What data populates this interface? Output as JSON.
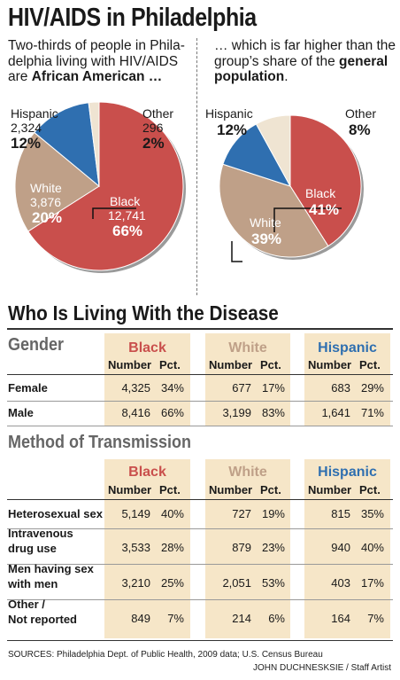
{
  "title": "HIV/AIDS in Philadelphia",
  "left_intro_1": "Two-thirds of people in Phila-delphia living with HIV/AIDS are ",
  "left_intro_bold": "African American …",
  "right_intro_1": "… which is far higher than the group’s share of the ",
  "right_intro_bold": "general population",
  "right_intro_end": ".",
  "colors": {
    "black": "#c94f4c",
    "white": "#bfa088",
    "hispanic": "#2f6fb0",
    "other": "#efe4d2",
    "band": "#f6e6c8"
  },
  "chart_data": [
    {
      "type": "pie",
      "slices": [
        {
          "name": "Black",
          "count": "12,741",
          "pct": "66%",
          "value": 66
        },
        {
          "name": "White",
          "count": "3,876",
          "pct": "20%",
          "value": 20
        },
        {
          "name": "Hispanic",
          "count": "2,324",
          "pct": "12%",
          "value": 12
        },
        {
          "name": "Other",
          "count": "296",
          "pct": "2%",
          "value": 2
        }
      ]
    },
    {
      "type": "pie",
      "slices": [
        {
          "name": "Black",
          "pct": "41%",
          "value": 41
        },
        {
          "name": "White",
          "pct": "39%",
          "value": 39
        },
        {
          "name": "Hispanic",
          "pct": "12%",
          "value": 12
        },
        {
          "name": "Other",
          "pct": "8%",
          "value": 8
        }
      ]
    },
    {
      "type": "table",
      "title": "Who Is Living With the Disease",
      "groups": [
        "Black",
        "White",
        "Hispanic"
      ],
      "col_headers": [
        "Number",
        "Pct."
      ],
      "sections": [
        {
          "name": "Gender",
          "rows": [
            {
              "label": [
                "Female"
              ],
              "values": [
                [
                  "4,325",
                  "34%"
                ],
                [
                  "677",
                  "17%"
                ],
                [
                  "683",
                  "29%"
                ]
              ]
            },
            {
              "label": [
                "Male"
              ],
              "values": [
                [
                  "8,416",
                  "66%"
                ],
                [
                  "3,199",
                  "83%"
                ],
                [
                  "1,641",
                  "71%"
                ]
              ]
            }
          ]
        },
        {
          "name": "Method of Transmission",
          "rows": [
            {
              "label": [
                "Heterosexual sex"
              ],
              "values": [
                [
                  "5,149",
                  "40%"
                ],
                [
                  "727",
                  "19%"
                ],
                [
                  "815",
                  "35%"
                ]
              ]
            },
            {
              "label": [
                "Intravenous",
                "drug use"
              ],
              "values": [
                [
                  "3,533",
                  "28%"
                ],
                [
                  "879",
                  "23%"
                ],
                [
                  "940",
                  "40%"
                ]
              ]
            },
            {
              "label": [
                "Men having sex",
                "with men"
              ],
              "values": [
                [
                  "3,210",
                  "25%"
                ],
                [
                  "2,051",
                  "53%"
                ],
                [
                  "403",
                  "17%"
                ]
              ]
            },
            {
              "label": [
                "Other /",
                "Not reported"
              ],
              "values": [
                [
                  "849",
                  "7%"
                ],
                [
                  "214",
                  "6%"
                ],
                [
                  "164",
                  "7%"
                ]
              ]
            }
          ]
        }
      ]
    }
  ],
  "sources": "SOURCES: Philadelphia Dept. of Public Health, 2009 data; U.S. Census Bureau",
  "credit": "JOHN DUCHNESKSIE / Staff Artist"
}
